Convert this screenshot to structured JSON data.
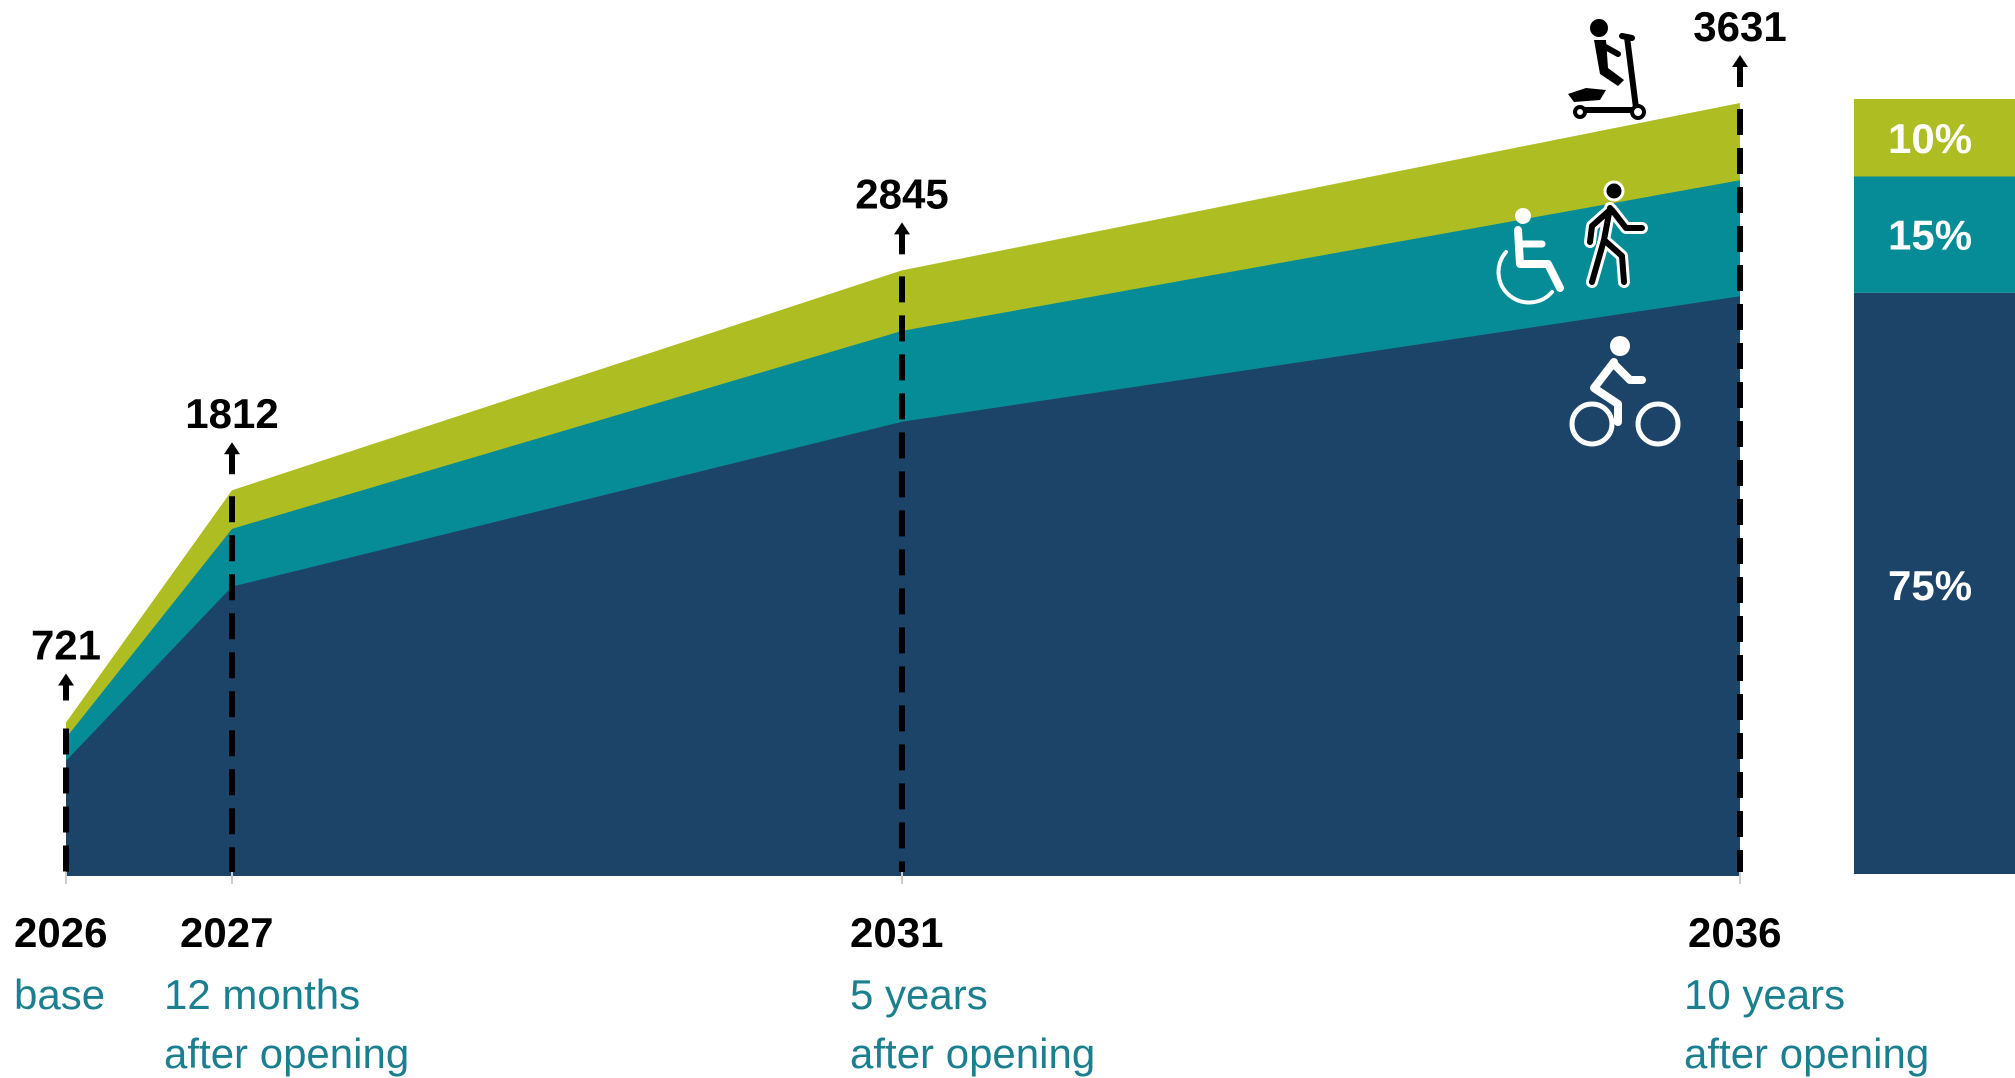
{
  "chart_data": {
    "type": "area",
    "x": [
      2026,
      2027,
      2031,
      2036
    ],
    "totals": [
      721,
      1812,
      2845,
      3631
    ],
    "series": [
      {
        "share": 0.75,
        "color": "#1c4468",
        "icon": "bicycle-icon"
      },
      {
        "share": 0.15,
        "color": "#058c96",
        "icon": "pedestrian-wheelchair-icon"
      },
      {
        "share": 0.1,
        "color": "#aebd21",
        "icon": "scooter-icon"
      }
    ],
    "share_bar": {
      "labels": [
        "75%",
        "15%",
        "10%"
      ]
    },
    "x_ticks": [
      {
        "year": "2026",
        "line1": "base",
        "line2": ""
      },
      {
        "year": "2027",
        "line1": "12 months",
        "line2": "after opening"
      },
      {
        "year": "2031",
        "line1": "5 years",
        "line2": "after opening"
      },
      {
        "year": "2036",
        "line1": "10 years",
        "line2": "after opening"
      }
    ],
    "total_labels": [
      "721",
      "1812",
      "2845",
      "3631"
    ],
    "grid": false,
    "legend": "none"
  }
}
